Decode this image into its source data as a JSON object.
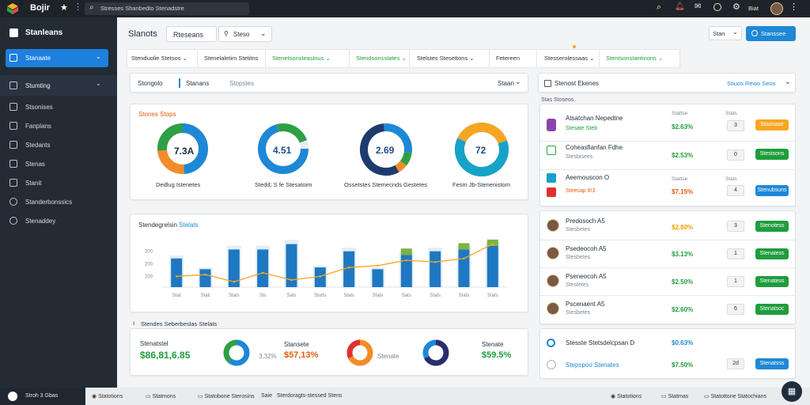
{
  "topbar": {
    "app_name": "Bojir",
    "search_placeholder": "Stresses Shanbedto Stenadstre",
    "user_label": "Biat"
  },
  "sidebar": {
    "brand": "Stanleans",
    "active_item": "Stanaate",
    "section": "Stumting",
    "items": [
      "Stsonises",
      "Fanplans",
      "Stedants",
      "Stenas",
      "Stanit",
      "Standerbonssics",
      "Stenaddey"
    ]
  },
  "footer": {
    "left_label": "Stroh 3 Gbas",
    "items": [
      "Statotions",
      "Statmons",
      "Statobone Sterosins",
      "Saie",
      "Sterdoragts-stessed Stens"
    ],
    "right_items": [
      "Statotions",
      "Statmas",
      "Statottone Statochians"
    ]
  },
  "header": {
    "title": "Slanots",
    "tab_active": "Rteseans",
    "dropdown": "Steso",
    "right_select": "Stan",
    "primary_button": "Stanssee"
  },
  "filters": [
    "Stenduolie Stetsos",
    "Stenelaletim Stetitns",
    "Stenetsonsteastsus",
    "Stendsonsstates",
    "Stelstes Stesettons",
    "Fetereen",
    "Stesserolessaas",
    "Stentsonstantinons"
  ],
  "subnav": {
    "label": "Stongolo",
    "active": "Stanans",
    "item": "Stopstes",
    "right": "Staan"
  },
  "donut_card": {
    "title": "Stones Stops",
    "donuts": [
      {
        "value": "7.3A",
        "label": "Dedlug Istenetes"
      },
      {
        "value": "4.51",
        "label": "Stedd; S fe Stesatoim"
      },
      {
        "value": "2.69",
        "label": "Ossetstes Stemecnds Gestetes"
      },
      {
        "value": "72",
        "label": "Fesm Jb-Stenenistom"
      }
    ]
  },
  "bar_card": {
    "title": "Stendegrelsin",
    "title_accent": "Stelats",
    "section_note": "Stendes Seberbeslas Stelats"
  },
  "chart_data": {
    "type": "bar",
    "categories": [
      "Stat",
      "Stati",
      "Stats",
      "Sts",
      "Sats",
      "Stutts",
      "Stats",
      "Stats",
      "Sats",
      "Stats",
      "Stats",
      "Stats"
    ],
    "ylim": [
      0,
      300
    ],
    "yticks": [
      "200",
      "200",
      "200"
    ],
    "series": [
      {
        "values": [
          160,
          100,
          210,
          210,
          240,
          110,
          200,
          100,
          180,
          200,
          210,
          230
        ]
      },
      {
        "values": [
          60,
          70,
          30,
          80,
          40,
          60,
          110,
          120,
          150,
          140,
          160,
          240
        ]
      }
    ]
  },
  "stats_card": {
    "big_value": "$86,81,6.85",
    "big_label": "Stenatstel",
    "pct1": "3,32%",
    "label2": "Stansete",
    "pct2": "$57,13%",
    "label3": "Stenate",
    "label4": "Stenate",
    "pct4": "$59.5%"
  },
  "right_panel": {
    "title": "Stenost Ekenes",
    "link": "Stiuos Rewo Seos",
    "sub": "Stas Stoseos",
    "col_price": "Stattse",
    "col_qty": "Stats",
    "rows": [
      {
        "title": "Atsatchan Nepedtne",
        "sub": "Stesate Steb",
        "price": "$2.63%",
        "qty": "3",
        "btn": "Stasnase",
        "btn_color": "#f5a623"
      },
      {
        "title": "Coheasfianfan Fdhe",
        "sub": "Stesbisees",
        "price": "$2.53%",
        "qty": "0",
        "btn": "Stestsons",
        "btn_color": "#1f9d3d"
      },
      {
        "title": "Aeemouscon O",
        "sub": "Steecap 6!3",
        "price": "$7.15%",
        "qty": "4",
        "btn": "Stenubsuns",
        "btn_color": "#1e88d6"
      },
      {
        "title": "Predosoch A5",
        "sub": "Stesbetes",
        "price": "$2.80%",
        "qty": "3",
        "btn": "Stenotess",
        "btn_color": "#1f9d3d"
      },
      {
        "title": "Psedeocoh A5",
        "sub": "Stesbetes",
        "price": "$3.13%",
        "qty": "1",
        "btn": "Stenatess",
        "btn_color": "#1f9d3d"
      },
      {
        "title": "Pseneocoh A5",
        "sub": "Stestetes",
        "price": "$2.50%",
        "qty": "1",
        "btn": "Stenatess",
        "btn_color": "#1f9d3d"
      },
      {
        "title": "Pscenaent A5",
        "sub": "Stesbetes",
        "price": "$2.60%",
        "qty": "6",
        "btn": "Stenatsoc",
        "btn_color": "#1f9d3d"
      }
    ],
    "bottom": [
      {
        "title": "Stesste Stetsdelcpsan D",
        "price": "$0.63%"
      },
      {
        "title": "Stepspoo Stenates",
        "price": "$7.50%",
        "qty": "2d",
        "btn": "Stenatsss"
      }
    ]
  }
}
